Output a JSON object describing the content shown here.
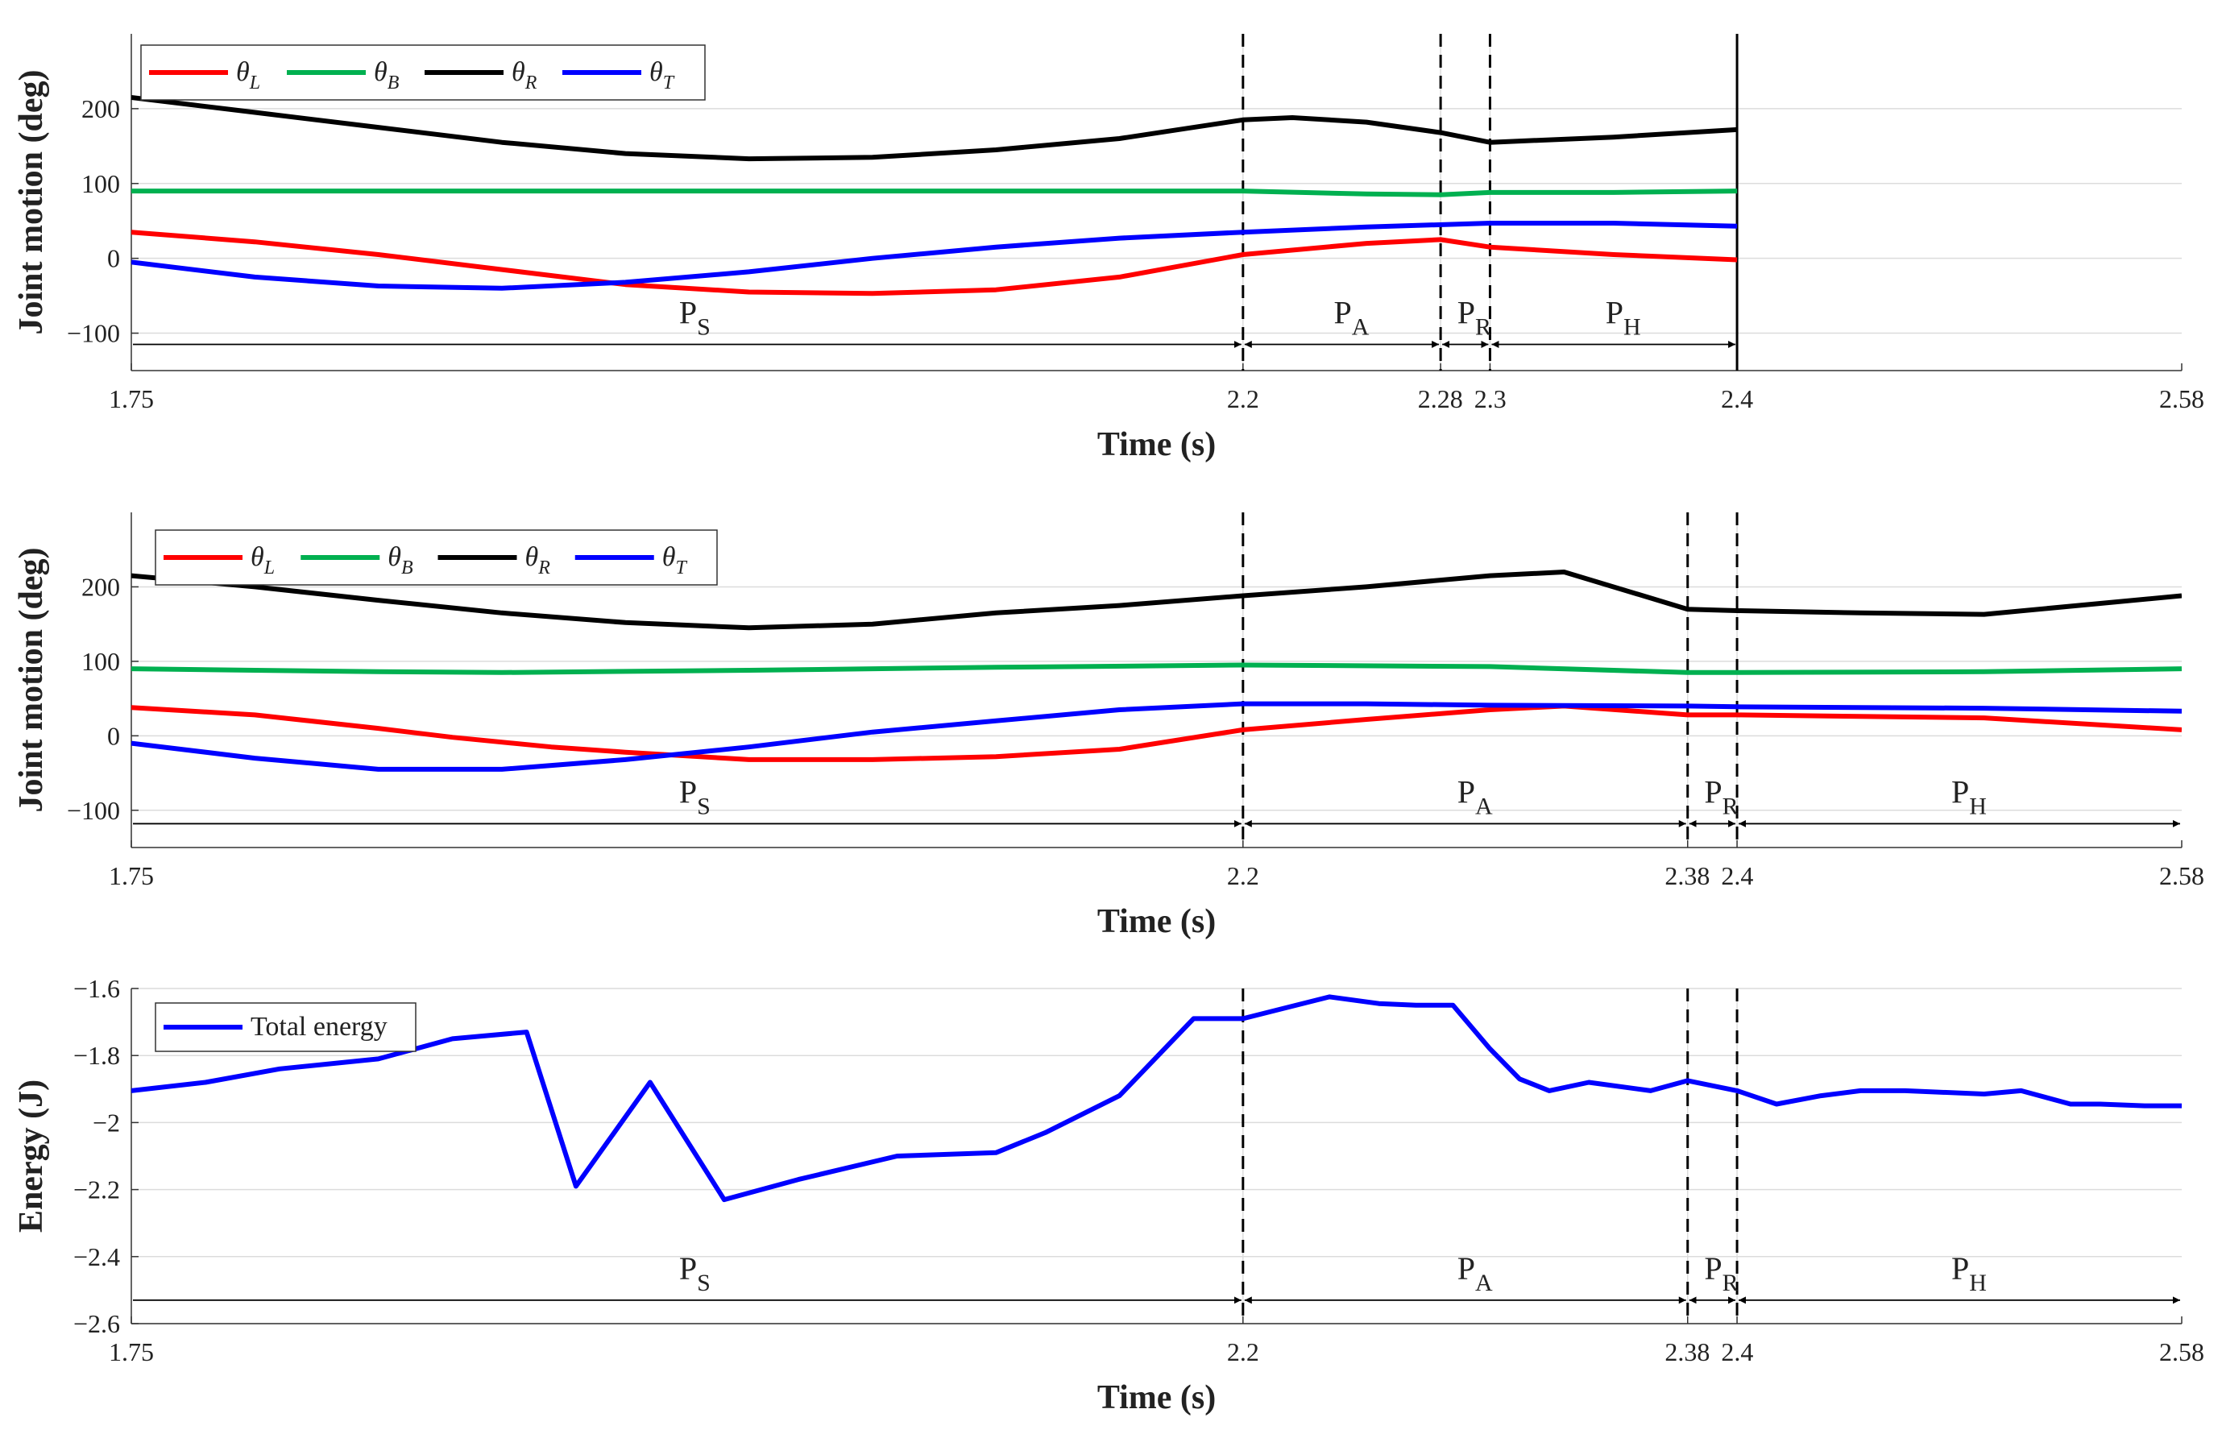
{
  "chart_data": [
    {
      "type": "line",
      "xlabel": "Time (s)",
      "ylabel": "Joint motion (deg)",
      "xlim": [
        1.75,
        2.58
      ],
      "ylim": [
        -150,
        300
      ],
      "yticks": [
        -100,
        0,
        100,
        200
      ],
      "yticklabels": [
        "−100",
        "0",
        "100",
        "200"
      ],
      "xticks": [
        1.75,
        2.2,
        2.28,
        2.3,
        2.4,
        2.58
      ],
      "xticklabels": [
        "1.75",
        "2.2",
        "2.28",
        "2.3",
        "2.4",
        "2.58"
      ],
      "grid": true,
      "legend_position": "top-left",
      "series": [
        {
          "symbol": "θ",
          "sub": "L",
          "color": "#ff0000",
          "x": [
            1.75,
            1.8,
            1.85,
            1.9,
            1.95,
            2.0,
            2.05,
            2.1,
            2.15,
            2.2,
            2.25,
            2.28,
            2.3,
            2.35,
            2.4
          ],
          "y": [
            35,
            22,
            5,
            -15,
            -35,
            -45,
            -47,
            -42,
            -25,
            5,
            20,
            25,
            15,
            5,
            -2
          ]
        },
        {
          "symbol": "θ",
          "sub": "B",
          "color": "#00b050",
          "x": [
            1.75,
            1.8,
            1.9,
            2.0,
            2.1,
            2.2,
            2.25,
            2.28,
            2.3,
            2.35,
            2.4
          ],
          "y": [
            90,
            90,
            90,
            90,
            90,
            90,
            86,
            85,
            88,
            88,
            90
          ]
        },
        {
          "symbol": "θ",
          "sub": "R",
          "color": "#000000",
          "x": [
            1.75,
            1.8,
            1.85,
            1.9,
            1.95,
            2.0,
            2.05,
            2.1,
            2.15,
            2.2,
            2.22,
            2.25,
            2.28,
            2.3,
            2.35,
            2.4
          ],
          "y": [
            215,
            195,
            175,
            155,
            140,
            133,
            135,
            145,
            160,
            185,
            188,
            182,
            168,
            155,
            162,
            172
          ]
        },
        {
          "symbol": "θ",
          "sub": "T",
          "color": "#0000ff",
          "x": [
            1.75,
            1.8,
            1.85,
            1.9,
            1.95,
            2.0,
            2.05,
            2.1,
            2.15,
            2.2,
            2.25,
            2.3,
            2.35,
            2.4
          ],
          "y": [
            -5,
            -25,
            -37,
            -40,
            -32,
            -18,
            0,
            15,
            27,
            35,
            42,
            47,
            47,
            43
          ]
        }
      ],
      "vlines": [
        {
          "x": 2.2,
          "style": "dashed"
        },
        {
          "x": 2.28,
          "style": "dashed"
        },
        {
          "x": 2.3,
          "style": "dashed"
        },
        {
          "x": 2.4,
          "style": "solid"
        }
      ],
      "arrow_level": -115,
      "phases": [
        {
          "label": "P",
          "sub": "S",
          "from": 1.75,
          "to": 2.2
        },
        {
          "label": "P",
          "sub": "A",
          "from": 2.2,
          "to": 2.28
        },
        {
          "label": "P",
          "sub": "R",
          "from": 2.28,
          "to": 2.3
        },
        {
          "label": "P",
          "sub": "H",
          "from": 2.3,
          "to": 2.4
        }
      ]
    },
    {
      "type": "line",
      "xlabel": "Time (s)",
      "ylabel": "Joint motion (deg)",
      "xlim": [
        1.75,
        2.58
      ],
      "ylim": [
        -150,
        300
      ],
      "yticks": [
        -100,
        0,
        100,
        200
      ],
      "yticklabels": [
        "−100",
        "0",
        "100",
        "200"
      ],
      "xticks": [
        1.75,
        2.2,
        2.38,
        2.4,
        2.58
      ],
      "xticklabels": [
        "1.75",
        "2.2",
        "2.38",
        "2.4",
        "2.58"
      ],
      "grid": true,
      "legend_position": "top-left",
      "series": [
        {
          "symbol": "θ",
          "sub": "L",
          "color": "#ff0000",
          "x": [
            1.75,
            1.8,
            1.85,
            1.88,
            1.92,
            1.95,
            2.0,
            2.05,
            2.1,
            2.15,
            2.2,
            2.25,
            2.3,
            2.33,
            2.38,
            2.4,
            2.45,
            2.5,
            2.58
          ],
          "y": [
            38,
            28,
            10,
            -2,
            -15,
            -22,
            -32,
            -32,
            -28,
            -18,
            8,
            22,
            35,
            40,
            28,
            28,
            26,
            24,
            8
          ]
        },
        {
          "symbol": "θ",
          "sub": "B",
          "color": "#00b050",
          "x": [
            1.75,
            1.8,
            1.85,
            1.9,
            2.0,
            2.1,
            2.2,
            2.3,
            2.38,
            2.4,
            2.5,
            2.58
          ],
          "y": [
            90,
            88,
            86,
            85,
            88,
            92,
            95,
            93,
            85,
            85,
            86,
            90
          ]
        },
        {
          "symbol": "θ",
          "sub": "R",
          "color": "#000000",
          "x": [
            1.75,
            1.8,
            1.85,
            1.9,
            1.95,
            2.0,
            2.05,
            2.1,
            2.15,
            2.2,
            2.25,
            2.3,
            2.33,
            2.38,
            2.4,
            2.45,
            2.5,
            2.58
          ],
          "y": [
            215,
            200,
            182,
            165,
            152,
            145,
            150,
            165,
            175,
            188,
            200,
            215,
            220,
            170,
            168,
            165,
            163,
            188
          ]
        },
        {
          "symbol": "θ",
          "sub": "T",
          "color": "#0000ff",
          "x": [
            1.75,
            1.8,
            1.85,
            1.9,
            1.95,
            2.0,
            2.05,
            2.1,
            2.15,
            2.2,
            2.25,
            2.3,
            2.38,
            2.4,
            2.5,
            2.58
          ],
          "y": [
            -10,
            -30,
            -45,
            -45,
            -32,
            -15,
            5,
            20,
            35,
            43,
            43,
            41,
            40,
            39,
            37,
            33
          ]
        }
      ],
      "vlines": [
        {
          "x": 2.2,
          "style": "dashed"
        },
        {
          "x": 2.38,
          "style": "dashed"
        },
        {
          "x": 2.4,
          "style": "dashed"
        }
      ],
      "arrow_level": -118,
      "phases": [
        {
          "label": "P",
          "sub": "S",
          "from": 1.75,
          "to": 2.2
        },
        {
          "label": "P",
          "sub": "A",
          "from": 2.2,
          "to": 2.38
        },
        {
          "label": "P",
          "sub": "R",
          "from": 2.38,
          "to": 2.4
        },
        {
          "label": "P",
          "sub": "H",
          "from": 2.4,
          "to": 2.58
        }
      ]
    },
    {
      "type": "line",
      "xlabel": "Time (s)",
      "ylabel": "Energy (J)",
      "xlim": [
        1.75,
        2.58
      ],
      "ylim": [
        -2.6,
        -1.6
      ],
      "yticks": [
        -2.6,
        -2.4,
        -2.2,
        -2.0,
        -1.8,
        -1.6
      ],
      "yticklabels": [
        "−2.6",
        "−2.4",
        "−2.2",
        "−2",
        "−1.8",
        "−1.6"
      ],
      "xticks": [
        1.75,
        2.2,
        2.38,
        2.4,
        2.58
      ],
      "xticklabels": [
        "1.75",
        "2.2",
        "2.38",
        "2.4",
        "2.58"
      ],
      "grid": true,
      "legend_position": "top-left",
      "series": [
        {
          "name": "Total energy",
          "color": "#0000ff",
          "x": [
            1.75,
            1.78,
            1.81,
            1.85,
            1.88,
            1.91,
            1.93,
            1.96,
            1.99,
            2.02,
            2.06,
            2.1,
            2.12,
            2.15,
            2.18,
            2.2,
            2.216,
            2.235,
            2.255,
            2.27,
            2.285,
            2.3,
            2.312,
            2.324,
            2.34,
            2.365,
            2.38,
            2.4,
            2.416,
            2.434,
            2.45,
            2.468,
            2.5,
            2.515,
            2.535,
            2.547,
            2.565,
            2.58
          ],
          "y": [
            -1.905,
            -1.88,
            -1.84,
            -1.81,
            -1.75,
            -1.73,
            -2.19,
            -1.88,
            -2.23,
            -2.17,
            -2.1,
            -2.09,
            -2.03,
            -1.92,
            -1.69,
            -1.69,
            -1.66,
            -1.625,
            -1.645,
            -1.65,
            -1.65,
            -1.78,
            -1.87,
            -1.905,
            -1.88,
            -1.905,
            -1.875,
            -1.905,
            -1.945,
            -1.92,
            -1.905,
            -1.905,
            -1.915,
            -1.905,
            -1.945,
            -1.945,
            -1.95,
            -1.95
          ]
        }
      ],
      "vlines": [
        {
          "x": 2.2,
          "style": "dashed"
        },
        {
          "x": 2.38,
          "style": "dashed"
        },
        {
          "x": 2.4,
          "style": "dashed"
        }
      ],
      "arrow_level": -2.53,
      "phases": [
        {
          "label": "P",
          "sub": "S",
          "from": 1.75,
          "to": 2.2
        },
        {
          "label": "P",
          "sub": "A",
          "from": 2.2,
          "to": 2.38
        },
        {
          "label": "P",
          "sub": "R",
          "from": 2.38,
          "to": 2.4
        },
        {
          "label": "P",
          "sub": "H",
          "from": 2.4,
          "to": 2.58
        }
      ]
    }
  ]
}
